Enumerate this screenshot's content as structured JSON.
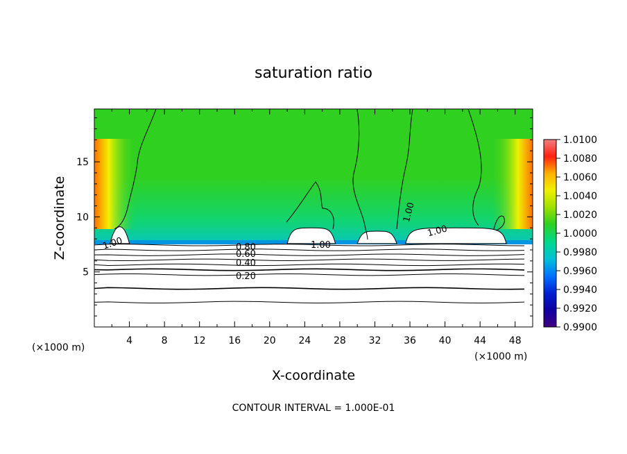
{
  "chart_data": {
    "type": "heatmap",
    "title": "saturation ratio",
    "xlabel": "X-coordinate",
    "ylabel": "Z-coordinate",
    "x_unit_label": "(×1000 m)",
    "z_unit_label": "(×1000 m)",
    "xlim": [
      0,
      50
    ],
    "ylim": [
      0,
      19.8
    ],
    "x_ticks": [
      4,
      8,
      12,
      16,
      20,
      24,
      28,
      32,
      36,
      40,
      44,
      48
    ],
    "y_ticks": [
      5,
      10,
      15
    ],
    "footer": "CONTOUR INTERVAL = 1.000E-01",
    "colorbar": {
      "ticks": [
        "1.0100",
        "1.0080",
        "1.0060",
        "1.0040",
        "1.0020",
        "1.0000",
        "0.9980",
        "0.9960",
        "0.9940",
        "0.9920",
        "0.9900"
      ],
      "colors": [
        "#f08080",
        "#ff2010",
        "#ff7000",
        "#ffb000",
        "#f0f000",
        "#a0e000",
        "#30d020",
        "#00d890",
        "#00c0d8",
        "#0070ff",
        "#0020d0",
        "#1000a0",
        "#400080"
      ]
    },
    "regions": {
      "saturated_layer_bottom_z": 7.7,
      "subsaturated_top_z": 9.2
    },
    "contour_labels": [
      "1.00",
      "1.00",
      "1.00",
      "1.00",
      "0.80",
      "0.60",
      "0.40",
      "0.20"
    ],
    "contour_levels_below_cloud": [
      0.9,
      0.8,
      0.7,
      0.6,
      0.5,
      0.4,
      0.3,
      0.2,
      0.1
    ],
    "cloud_patches": [
      {
        "x_range": [
          1.8,
          4.0
        ],
        "z_top": 9.1
      },
      {
        "x_range": [
          22.0,
          27.5
        ],
        "z_top": 9.0
      },
      {
        "x_range": [
          30.0,
          34.5
        ],
        "z_top": 8.7
      },
      {
        "x_range": [
          35.5,
          47.0
        ],
        "z_top": 9.0
      }
    ]
  }
}
